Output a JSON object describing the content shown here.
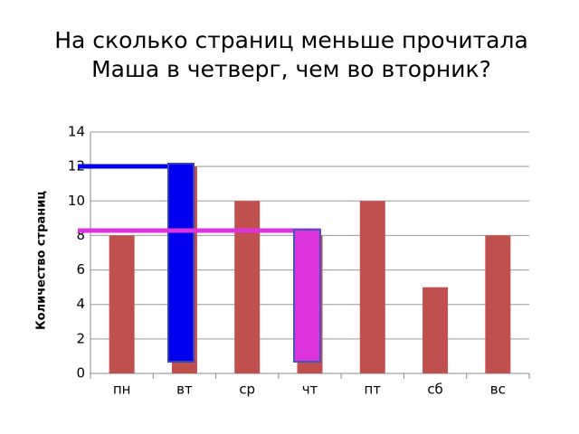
{
  "chart_data": {
    "type": "bar",
    "title": [
      "На сколько страниц меньше прочитала",
      "Маша в четверг, чем во вторник?"
    ],
    "y_label": "Количество страниц",
    "categories": [
      "пн",
      "вт",
      "ср",
      "чт",
      "пт",
      "сб",
      "вс"
    ],
    "values": [
      8,
      12,
      10,
      8,
      10,
      5,
      8
    ],
    "color": "#c0504d",
    "ylim": [
      0,
      14
    ],
    "yticks": [
      0,
      2,
      4,
      6,
      8,
      10,
      12,
      14
    ],
    "grid": true
  }
}
